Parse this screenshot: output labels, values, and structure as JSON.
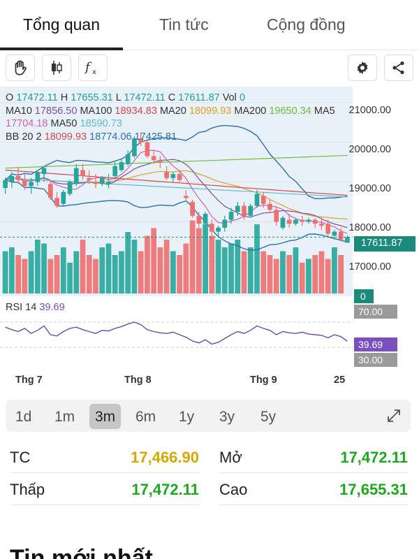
{
  "tabs": [
    {
      "label": "Tổng quan"
    },
    {
      "label": "Tin tức"
    },
    {
      "label": "Cộng đồng"
    }
  ],
  "toolbar": {
    "icons": [
      "drag-hand-icon",
      "candlestick-icon",
      "function-icon",
      "gear-icon",
      "share-icon"
    ]
  },
  "legend": {
    "ohlc": {
      "o_label": "O",
      "o": "17472.11",
      "h_label": "H",
      "h": "17655.31",
      "l_label": "L",
      "l": "17472.11",
      "c_label": "C",
      "c": "17611.87",
      "vol_label": "Vol",
      "vol": "0"
    },
    "ma_line1": {
      "ma10_label": "MA10",
      "ma10": "17856.50",
      "ma100_label": "MA100",
      "ma100": "18934.83",
      "ma20_label": "MA20",
      "ma20": "18099.93",
      "ma200_label": "MA200",
      "ma200": "19650.34",
      "ma5_label": "MA5"
    },
    "ma_line2": {
      "ma5": "17704.18",
      "ma50_label": "MA50",
      "ma50": "18590.73"
    },
    "bb_line": {
      "bb_label": "BB 20 2",
      "mid": "18099.93",
      "upper": "18774.06",
      "lower": "17425.81"
    }
  },
  "y_axis": [
    "21000.00",
    "20000.00",
    "19000.00",
    "18000.00",
    "17000.00"
  ],
  "price_tag": "17611.87",
  "volume_tag": "0",
  "rsi": {
    "label": "RSI 14",
    "value": "39.69",
    "level_70": "70.00",
    "level_30": "30.00"
  },
  "x_axis": [
    "Thg 7",
    "Thg 8",
    "Thg 9",
    "25"
  ],
  "ranges": [
    "1d",
    "1m",
    "3m",
    "6m",
    "1y",
    "3y",
    "5y"
  ],
  "selected_range": "3m",
  "stats": {
    "tc_label": "TC",
    "tc": "17,466.90",
    "mo_label": "Mở",
    "mo": "17,472.11",
    "thap_label": "Thấp",
    "thap": "17,472.11",
    "cao_label": "Cao",
    "cao": "17,655.31"
  },
  "colors": {
    "up": "#26a69a",
    "down": "#ef6f6f",
    "ref": "#d4a800",
    "green_text": "#1fa81f",
    "accent": "#1b8a7a"
  },
  "news_heading": "Tin mới nhất",
  "chart_data": {
    "type": "candlestick",
    "y_range": [
      16300,
      21400
    ],
    "candles": [
      {
        "o": 18850,
        "h": 19100,
        "l": 18700,
        "c": 19050
      },
      {
        "o": 19000,
        "h": 19250,
        "l": 18850,
        "c": 19150
      },
      {
        "o": 19150,
        "h": 19350,
        "l": 18950,
        "c": 19050
      },
      {
        "o": 19050,
        "h": 19200,
        "l": 18800,
        "c": 18900
      },
      {
        "o": 18900,
        "h": 19100,
        "l": 18700,
        "c": 19000
      },
      {
        "o": 19000,
        "h": 19300,
        "l": 18900,
        "c": 19250
      },
      {
        "o": 19200,
        "h": 19400,
        "l": 19000,
        "c": 19350
      },
      {
        "o": 18950,
        "h": 19050,
        "l": 18550,
        "c": 18600
      },
      {
        "o": 18600,
        "h": 18750,
        "l": 18350,
        "c": 18400
      },
      {
        "o": 18450,
        "h": 18800,
        "l": 18400,
        "c": 18750
      },
      {
        "o": 18700,
        "h": 19050,
        "l": 18650,
        "c": 19000
      },
      {
        "o": 18950,
        "h": 19450,
        "l": 18900,
        "c": 19350
      },
      {
        "o": 19300,
        "h": 19450,
        "l": 19050,
        "c": 19150
      },
      {
        "o": 19100,
        "h": 19300,
        "l": 18950,
        "c": 19050
      },
      {
        "o": 19000,
        "h": 19200,
        "l": 18850,
        "c": 18950
      },
      {
        "o": 18950,
        "h": 19150,
        "l": 18900,
        "c": 19100
      },
      {
        "o": 18950,
        "h": 19200,
        "l": 18850,
        "c": 19000
      },
      {
        "o": 19150,
        "h": 19500,
        "l": 19050,
        "c": 19400
      },
      {
        "o": 19300,
        "h": 19600,
        "l": 19250,
        "c": 19500
      },
      {
        "o": 19450,
        "h": 19800,
        "l": 19400,
        "c": 19700
      },
      {
        "o": 19650,
        "h": 20150,
        "l": 19600,
        "c": 20100
      },
      {
        "o": 20100,
        "h": 20250,
        "l": 19900,
        "c": 20000
      },
      {
        "o": 20000,
        "h": 20050,
        "l": 19600,
        "c": 19650
      },
      {
        "o": 19650,
        "h": 19800,
        "l": 19450,
        "c": 19550
      },
      {
        "o": 19550,
        "h": 19650,
        "l": 19350,
        "c": 19500
      },
      {
        "o": 19250,
        "h": 19400,
        "l": 19050,
        "c": 19100
      },
      {
        "o": 19100,
        "h": 19250,
        "l": 19000,
        "c": 19200
      },
      {
        "o": 19200,
        "h": 19300,
        "l": 19000,
        "c": 19050
      },
      {
        "o": 18650,
        "h": 18800,
        "l": 18550,
        "c": 18600
      },
      {
        "o": 18500,
        "h": 18550,
        "l": 18100,
        "c": 18150
      },
      {
        "o": 18150,
        "h": 18250,
        "l": 17850,
        "c": 17950
      },
      {
        "o": 17950,
        "h": 18250,
        "l": 17700,
        "c": 18200
      },
      {
        "o": 17950,
        "h": 18050,
        "l": 17650,
        "c": 17750
      },
      {
        "o": 17750,
        "h": 17900,
        "l": 17600,
        "c": 17850
      },
      {
        "o": 17850,
        "h": 18150,
        "l": 17750,
        "c": 18050
      },
      {
        "o": 18050,
        "h": 18350,
        "l": 17950,
        "c": 18250
      },
      {
        "o": 18250,
        "h": 18500,
        "l": 18150,
        "c": 18400
      },
      {
        "o": 18400,
        "h": 18500,
        "l": 18050,
        "c": 18150
      },
      {
        "o": 18150,
        "h": 18450,
        "l": 18100,
        "c": 18400
      },
      {
        "o": 18400,
        "h": 18800,
        "l": 18350,
        "c": 18700
      },
      {
        "o": 18650,
        "h": 18750,
        "l": 18350,
        "c": 18450
      },
      {
        "o": 18450,
        "h": 18550,
        "l": 18250,
        "c": 18300
      },
      {
        "o": 18300,
        "h": 18400,
        "l": 17900,
        "c": 18000
      },
      {
        "o": 17850,
        "h": 18150,
        "l": 17800,
        "c": 18100
      },
      {
        "o": 18050,
        "h": 18200,
        "l": 17850,
        "c": 17950
      },
      {
        "o": 17950,
        "h": 18100,
        "l": 17900,
        "c": 18050
      },
      {
        "o": 18050,
        "h": 18150,
        "l": 17900,
        "c": 18000
      },
      {
        "o": 18000,
        "h": 18100,
        "l": 17950,
        "c": 18050
      },
      {
        "o": 18050,
        "h": 18100,
        "l": 17850,
        "c": 17950
      },
      {
        "o": 17950,
        "h": 18100,
        "l": 17800,
        "c": 17900
      },
      {
        "o": 17950,
        "h": 18050,
        "l": 17600,
        "c": 17700
      },
      {
        "o": 17650,
        "h": 17800,
        "l": 17550,
        "c": 17750
      },
      {
        "o": 17750,
        "h": 17850,
        "l": 17500,
        "c": 17550
      },
      {
        "o": 17472,
        "h": 17655,
        "l": 17472,
        "c": 17612
      }
    ],
    "volume": [
      0.55,
      0.6,
      0.5,
      0.45,
      0.55,
      0.7,
      0.65,
      0.45,
      0.5,
      0.6,
      0.4,
      0.55,
      0.7,
      0.5,
      0.45,
      0.6,
      0.65,
      0.5,
      0.55,
      0.8,
      0.7,
      0.55,
      0.75,
      0.85,
      0.6,
      0.7,
      0.55,
      0.5,
      0.65,
      0.95,
      0.85,
      0.9,
      0.75,
      0.7,
      0.6,
      0.65,
      0.7,
      0.55,
      0.6,
      0.9,
      0.55,
      0.5,
      0.45,
      0.55,
      0.5,
      0.6,
      0.4,
      0.45,
      0.5,
      0.55,
      0.45,
      0.6,
      0.5,
      0.0
    ],
    "rsi": [
      62,
      58,
      55,
      60,
      52,
      57,
      64,
      50,
      48,
      55,
      60,
      62,
      58,
      55,
      52,
      57,
      56,
      60,
      63,
      67,
      70,
      66,
      58,
      55,
      53,
      52,
      54,
      50,
      46,
      40,
      37,
      42,
      35,
      38,
      44,
      50,
      55,
      52,
      57,
      64,
      60,
      57,
      50,
      55,
      53,
      52,
      54,
      51,
      50,
      49,
      45,
      50,
      47,
      39.69
    ],
    "rsi_range": [
      0,
      100
    ],
    "indicators": [
      "MA5",
      "MA10",
      "MA20",
      "MA50",
      "MA100",
      "MA200",
      "BB 20 2"
    ],
    "rsi_levels": [
      70,
      30
    ]
  }
}
